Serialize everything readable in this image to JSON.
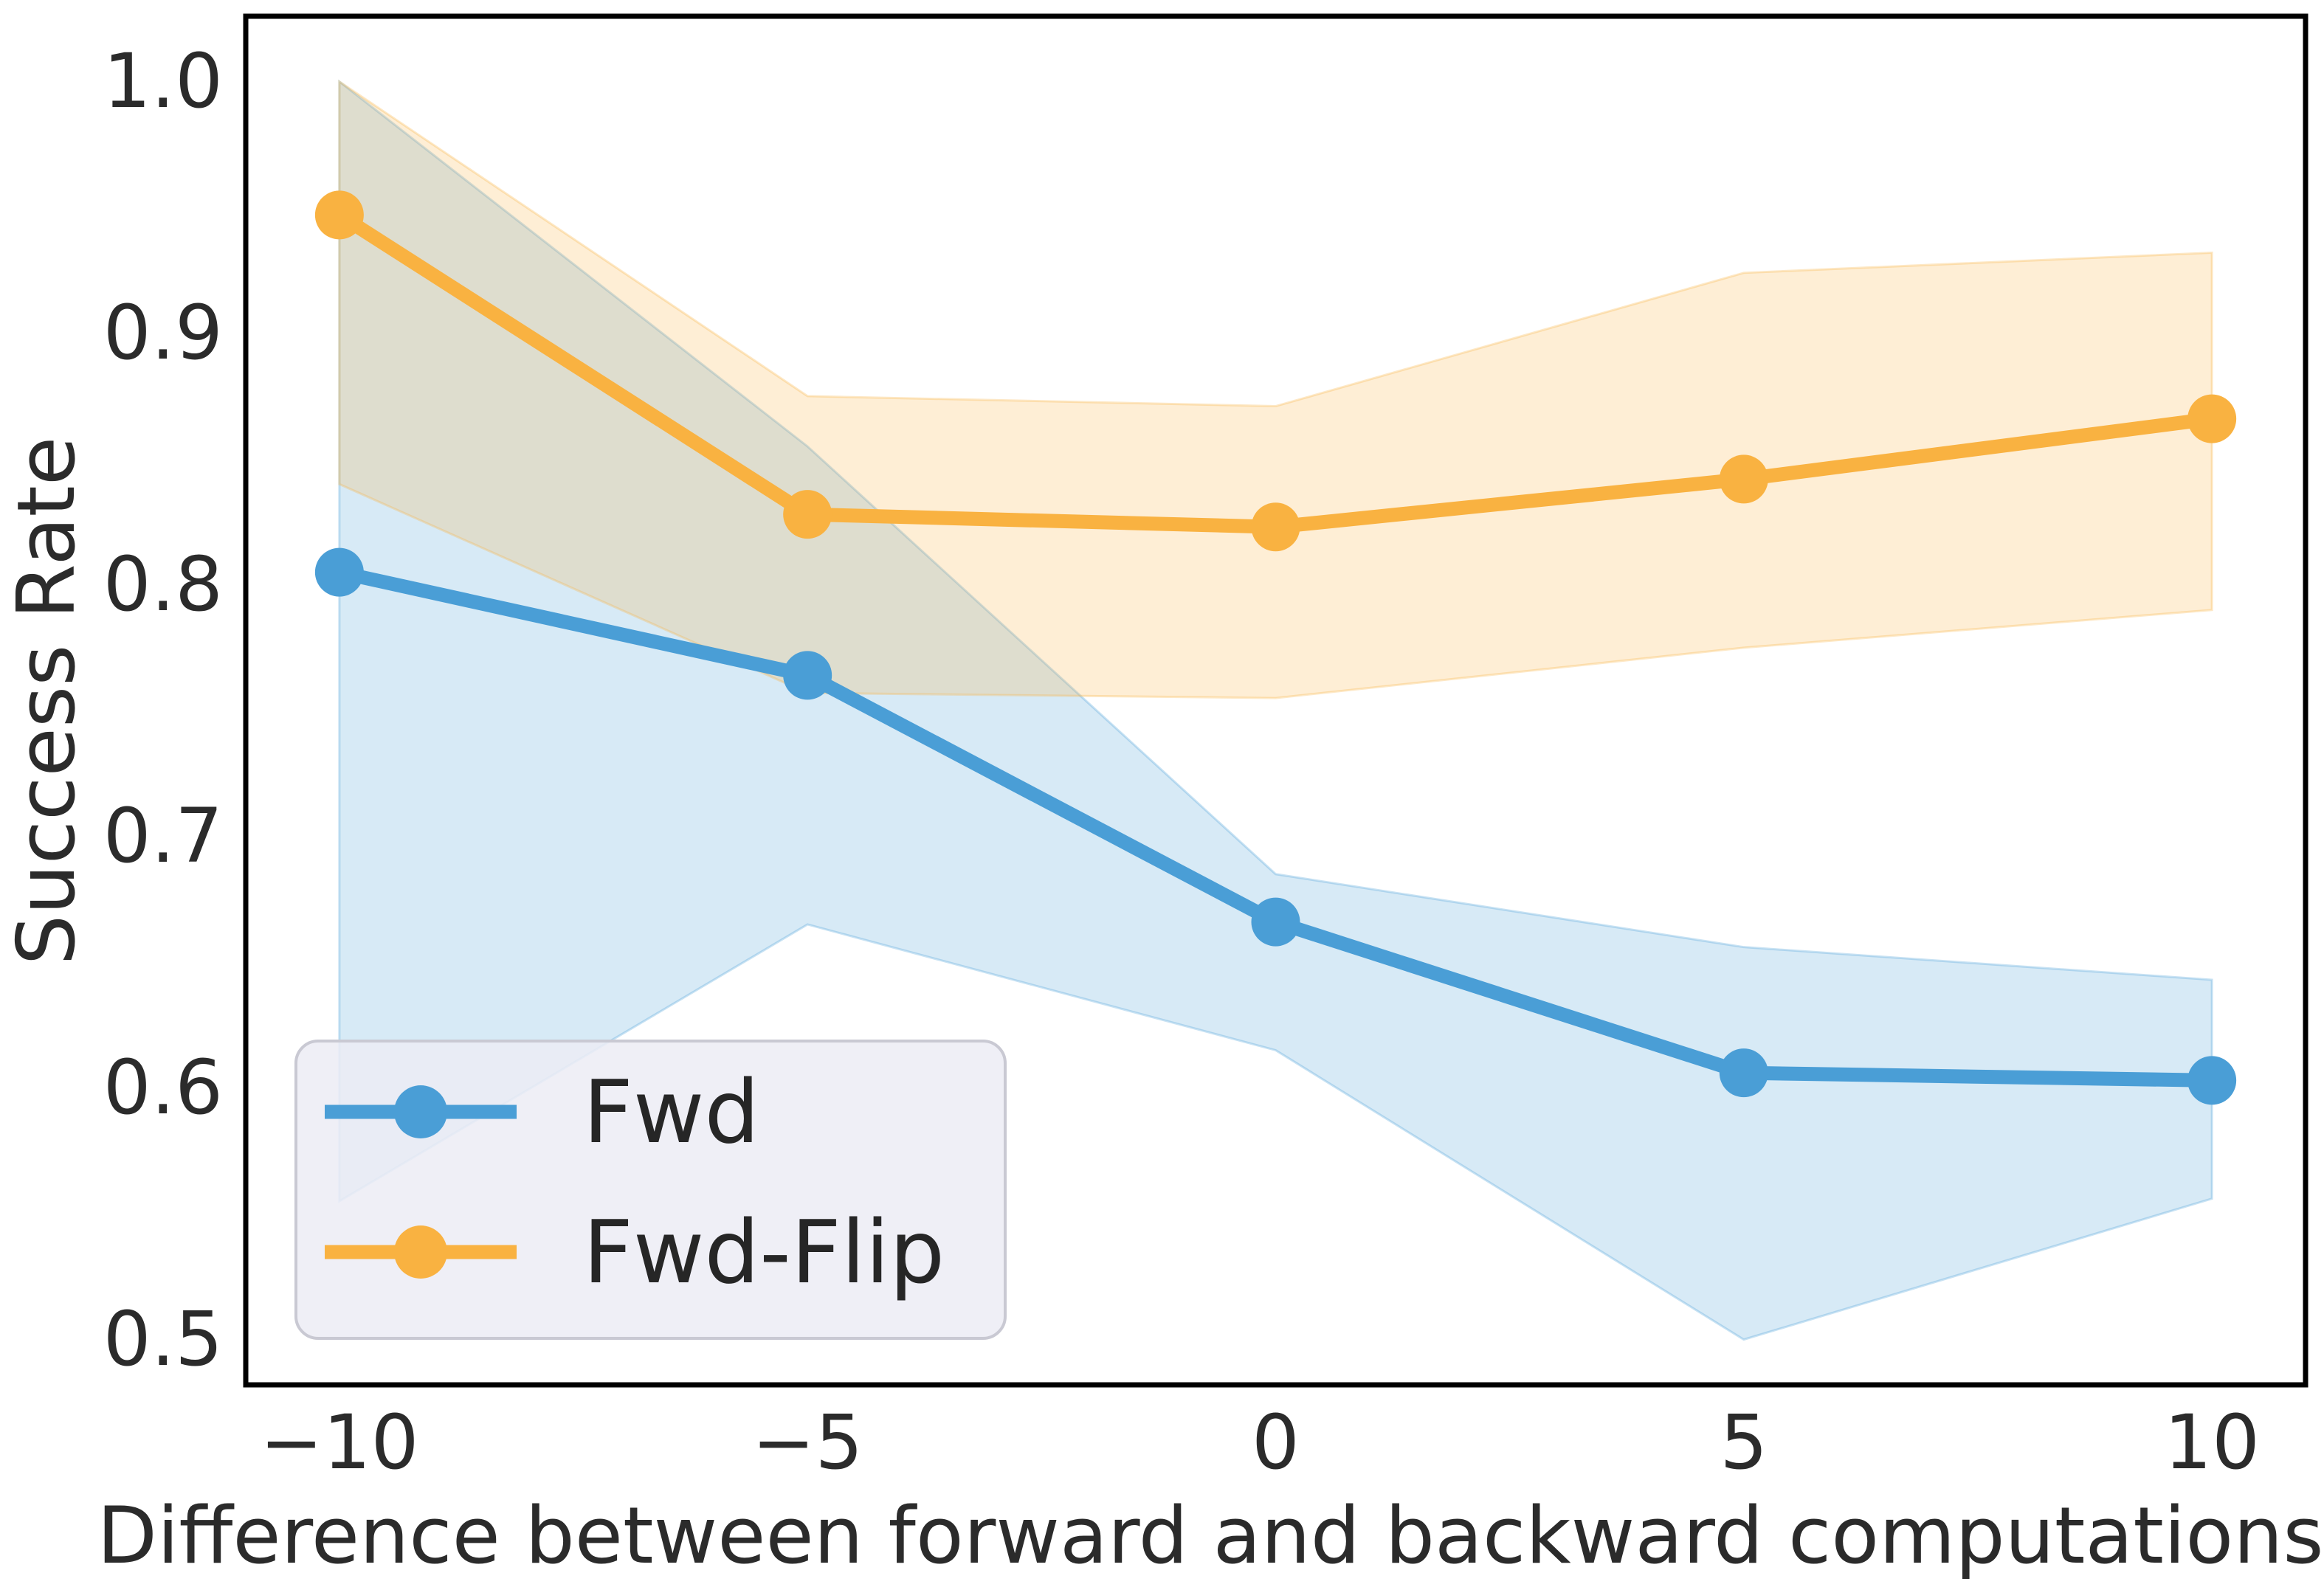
{
  "chart_data": {
    "type": "line",
    "title": "",
    "xlabel": "Difference between forward and backward computations",
    "ylabel": "Success Rate",
    "x": [
      -10,
      -5,
      0,
      5,
      10
    ],
    "series": [
      {
        "name": "Fwd",
        "color": "#4A9ED6",
        "values": [
          0.805,
          0.764,
          0.666,
          0.606,
          0.603
        ],
        "band_low": [
          0.555,
          0.665,
          0.615,
          0.5,
          0.556
        ],
        "band_high": [
          1.0,
          0.855,
          0.685,
          0.656,
          0.643
        ]
      },
      {
        "name": "Fwd-Flip",
        "color": "#F9B241",
        "values": [
          0.947,
          0.828,
          0.823,
          0.842,
          0.866
        ],
        "band_low": [
          0.84,
          0.757,
          0.755,
          0.775,
          0.79
        ],
        "band_high": [
          1.0,
          0.875,
          0.871,
          0.924,
          0.932
        ]
      }
    ],
    "band_alpha": 0.22,
    "xlim": [
      -11,
      11
    ],
    "ylim": [
      0.482,
      1.026
    ],
    "xticks": {
      "values": [
        -10,
        -5,
        0,
        5,
        10
      ],
      "labels": [
        "−10",
        "−5",
        "0",
        "5",
        "10"
      ]
    },
    "yticks": {
      "values": [
        0.5,
        0.6,
        0.7,
        0.8,
        0.9,
        1.0
      ],
      "labels": [
        "0.5",
        "0.6",
        "0.7",
        "0.8",
        "0.9",
        "1.0"
      ]
    },
    "legend": {
      "position": "lower left",
      "labels": [
        "Fwd",
        "Fwd-Flip"
      ]
    },
    "grid": false,
    "text_color": "#2b2b2b",
    "spine_color": "#000000",
    "legend_bg": "#ECECF4",
    "legend_border": "#C9C9D3",
    "background": "#ffffff"
  }
}
